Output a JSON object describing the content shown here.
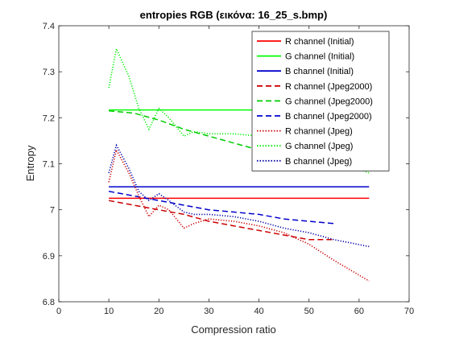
{
  "chart_data": {
    "type": "line",
    "title": "entropies RGB (εικόνα: 16_25_s.bmp)",
    "xlabel": "Compression ratio",
    "ylabel": "Entropy",
    "xlim": [
      0,
      70
    ],
    "ylim": [
      6.8,
      7.4
    ],
    "xticks": [
      "0",
      "10",
      "20",
      "30",
      "40",
      "50",
      "60",
      "70"
    ],
    "yticks": [
      "6.8",
      "6.9",
      "7",
      "7.1",
      "7.2",
      "7.3",
      "7.4"
    ],
    "grid": false,
    "legend_position": "top-right",
    "series": [
      {
        "name": "R channel (Initial)",
        "color": "#ff0000",
        "style": "solid",
        "x": [
          10,
          62
        ],
        "y": [
          7.025,
          7.025
        ]
      },
      {
        "name": "G channel (Initial)",
        "color": "#00ff00",
        "style": "solid",
        "x": [
          10,
          62
        ],
        "y": [
          7.217,
          7.217
        ]
      },
      {
        "name": "B channel (Initial)",
        "color": "#0000cc",
        "style": "solid",
        "x": [
          10,
          62
        ],
        "y": [
          7.05,
          7.05
        ]
      },
      {
        "name": "R channel (Jpeg2000)",
        "color": "#cc0000",
        "style": "dashed",
        "x": [
          10,
          15,
          20,
          25,
          30,
          35,
          40,
          45,
          50,
          55
        ],
        "y": [
          7.02,
          7.01,
          7.0,
          6.99,
          6.975,
          6.965,
          6.955,
          6.945,
          6.935,
          6.935
        ]
      },
      {
        "name": "G channel (Jpeg2000)",
        "color": "#00cc00",
        "style": "dashed",
        "x": [
          10,
          15,
          20,
          25,
          30,
          35,
          40,
          45,
          50,
          55
        ],
        "y": [
          7.215,
          7.21,
          7.195,
          7.175,
          7.16,
          7.145,
          7.13,
          7.12,
          7.11,
          7.1
        ]
      },
      {
        "name": "B channel (Jpeg2000)",
        "color": "#0000cc",
        "style": "dashed",
        "x": [
          10,
          15,
          20,
          25,
          30,
          35,
          40,
          45,
          50,
          55
        ],
        "y": [
          7.04,
          7.03,
          7.02,
          7.01,
          7.0,
          6.995,
          6.99,
          6.98,
          6.975,
          6.97
        ]
      },
      {
        "name": "R channel (Jpeg)",
        "color": "#cc0000",
        "style": "dotted",
        "x": [
          10,
          11.5,
          14,
          16,
          18,
          20,
          22,
          25,
          27,
          30,
          35,
          40,
          45,
          50,
          55,
          62
        ],
        "y": [
          7.06,
          7.13,
          7.08,
          7.03,
          6.985,
          7.01,
          7.0,
          6.96,
          6.97,
          6.98,
          6.975,
          6.965,
          6.95,
          6.925,
          6.89,
          6.845
        ]
      },
      {
        "name": "G channel (Jpeg)",
        "color": "#00ee00",
        "style": "dotted",
        "x": [
          10,
          11.5,
          14,
          16,
          18,
          20,
          22,
          25,
          27,
          30,
          35,
          40,
          45,
          50,
          55,
          62
        ],
        "y": [
          7.265,
          7.35,
          7.29,
          7.22,
          7.175,
          7.22,
          7.2,
          7.16,
          7.17,
          7.165,
          7.165,
          7.16,
          7.15,
          7.13,
          7.11,
          7.08
        ]
      },
      {
        "name": "B channel (Jpeg)",
        "color": "#0000aa",
        "style": "dotted",
        "x": [
          10,
          11.5,
          14,
          16,
          18,
          20,
          22,
          25,
          27,
          30,
          35,
          40,
          45,
          50,
          55,
          62
        ],
        "y": [
          7.08,
          7.14,
          7.09,
          7.04,
          7.02,
          7.035,
          7.02,
          6.995,
          6.99,
          6.99,
          6.985,
          6.975,
          6.96,
          6.95,
          6.935,
          6.92
        ]
      }
    ]
  }
}
